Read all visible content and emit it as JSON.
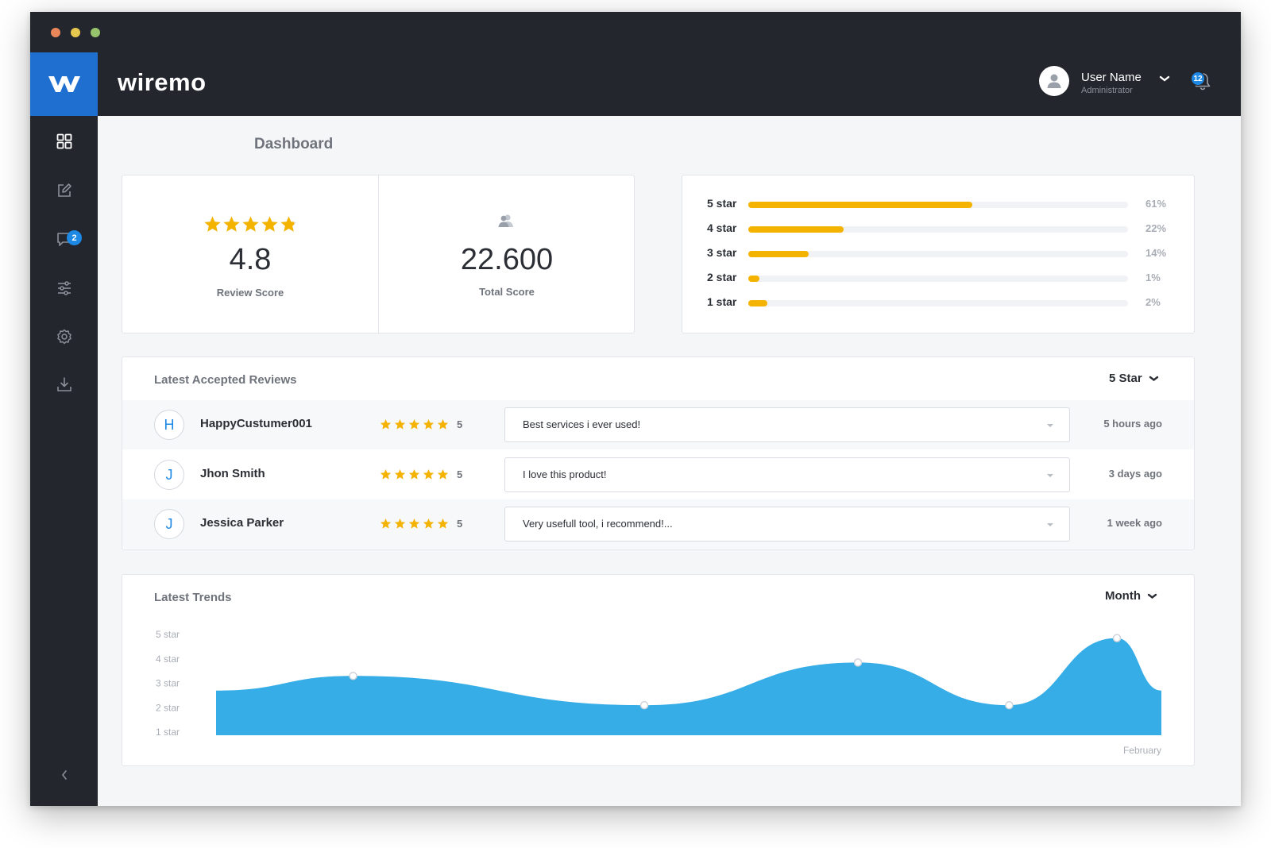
{
  "app": {
    "brand": "wiremo"
  },
  "user": {
    "name": "User Name",
    "role": "Administrator",
    "notifications": "12"
  },
  "sidebar": {
    "items": [
      {
        "icon": "dashboard-grid-icon"
      },
      {
        "icon": "edit-icon"
      },
      {
        "icon": "comments-icon",
        "badge": "2"
      },
      {
        "icon": "sliders-icon"
      },
      {
        "icon": "gear-icon"
      },
      {
        "icon": "download-icon"
      }
    ]
  },
  "page": {
    "title": "Dashboard"
  },
  "scores": {
    "review_score": "4.8",
    "review_score_label": "Review Score",
    "rating_stars": 4.8,
    "total_score": "22.600",
    "total_score_label": "Total Score"
  },
  "distribution": [
    {
      "label": "5 star",
      "percent": "61%",
      "fill": 0.59
    },
    {
      "label": "4 star",
      "percent": "22%",
      "fill": 0.25
    },
    {
      "label": "3 star",
      "percent": "14%",
      "fill": 0.16
    },
    {
      "label": "2 star",
      "percent": "1%",
      "fill": 0.03
    },
    {
      "label": "1 star",
      "percent": "2%",
      "fill": 0.05
    }
  ],
  "reviews": {
    "heading": "Latest Accepted Reviews",
    "filter": "5 Star",
    "rows": [
      {
        "initial": "H",
        "name": "HappyCustumer001",
        "rating": "5",
        "comment": "Best services i ever used!",
        "time": "5 hours ago"
      },
      {
        "initial": "J",
        "name": "Jhon Smith",
        "rating": "5",
        "comment": "I love this product!",
        "time": "3 days ago"
      },
      {
        "initial": "J",
        "name": "Jessica Parker",
        "rating": "5",
        "comment": "Very usefull tool, i recommend!...",
        "time": "1 week ago"
      }
    ]
  },
  "trends": {
    "heading": "Latest Trends",
    "filter": "Month",
    "x_label": "February"
  },
  "chart_data": {
    "type": "area",
    "y_categories": [
      "1 star",
      "2 star",
      "3 star",
      "4 star",
      "5 star"
    ],
    "ylim": [
      1,
      5
    ],
    "points": [
      {
        "x": 0.0,
        "y": 2.7
      },
      {
        "x": 0.145,
        "y": 3.3
      },
      {
        "x": 0.453,
        "y": 2.1
      },
      {
        "x": 0.679,
        "y": 3.85
      },
      {
        "x": 0.839,
        "y": 2.1
      },
      {
        "x": 0.953,
        "y": 4.85
      },
      {
        "x": 1.0,
        "y": 2.7
      }
    ],
    "marked_points": [
      1,
      2,
      3,
      4,
      5
    ],
    "color": "#36ade6",
    "grid": false,
    "legend": "none"
  },
  "colors": {
    "accent": "#1f6fd0",
    "star": "#f5b301",
    "badge": "#1e88e5",
    "dark": "#23262d"
  }
}
